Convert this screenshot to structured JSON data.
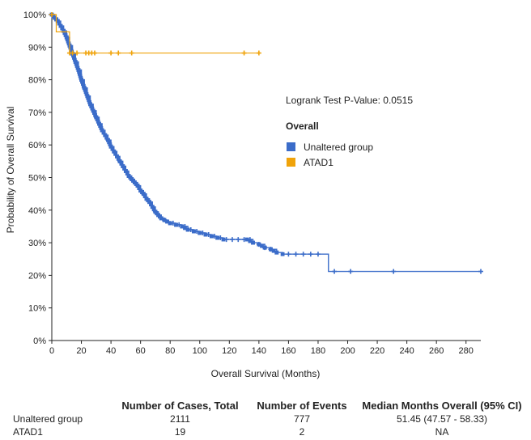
{
  "chart_data": {
    "type": "line",
    "xlabel": "Overall Survival (Months)",
    "ylabel": "Probability of Overall Survival",
    "xlim": [
      0,
      290
    ],
    "ylim": [
      0,
      100
    ],
    "x_ticks": [
      0,
      20,
      40,
      60,
      80,
      100,
      120,
      140,
      160,
      180,
      200,
      220,
      240,
      260,
      280
    ],
    "y_ticks": [
      "0%",
      "10%",
      "20%",
      "30%",
      "40%",
      "50%",
      "60%",
      "70%",
      "80%",
      "90%",
      "100%"
    ],
    "annotation": "Logrank Test P-Value: 0.0515",
    "legend_title": "Overall",
    "series": [
      {
        "name": "Unaltered group",
        "color": "#3b6cc9",
        "x": [
          0,
          2,
          4,
          6,
          8,
          10,
          12,
          14,
          16,
          18,
          20,
          22,
          24,
          26,
          28,
          30,
          32,
          34,
          36,
          38,
          40,
          42,
          44,
          46,
          48,
          50,
          52,
          54,
          56,
          58,
          60,
          62,
          64,
          66,
          68,
          70,
          72,
          74,
          76,
          78,
          80,
          84,
          88,
          92,
          96,
          100,
          104,
          108,
          112,
          116,
          120,
          124,
          128,
          132,
          136,
          140,
          144,
          148,
          152,
          156,
          160,
          170,
          180,
          185,
          187,
          200,
          230,
          290
        ],
        "y": [
          100,
          99,
          98,
          96.5,
          95,
          93,
          90.5,
          88,
          85.5,
          83,
          80,
          77.5,
          75,
          72.5,
          70.5,
          68.5,
          66.5,
          64.5,
          63,
          61.5,
          59.5,
          58,
          56.5,
          55,
          53.5,
          52,
          50.5,
          49.5,
          48.5,
          47.5,
          46,
          45,
          43.5,
          42.5,
          41,
          39.5,
          38.5,
          37.5,
          37,
          36.5,
          36,
          35.5,
          35,
          34,
          33.5,
          33,
          32.5,
          32,
          31.5,
          31,
          31,
          31,
          31,
          31,
          30,
          29.5,
          28.5,
          28,
          27,
          26.5,
          26.5,
          26.5,
          26.5,
          26.5,
          21.2,
          21.2,
          21.2,
          21.2
        ],
        "censored_x": [
          14,
          22,
          30,
          38,
          46,
          54,
          62,
          70,
          76,
          82,
          86,
          90,
          94,
          98,
          102,
          106,
          110,
          114,
          118,
          122,
          126,
          130,
          134,
          140,
          144,
          148,
          160,
          165,
          170,
          175,
          180,
          191,
          202,
          231,
          290
        ]
      },
      {
        "name": "ATAD1",
        "color": "#f0a30a",
        "x": [
          0,
          3,
          3,
          12,
          12,
          140
        ],
        "y": [
          100,
          100,
          94.7,
          94.7,
          88.2,
          88.2
        ],
        "censored_x": [
          0,
          12,
          14,
          17,
          23,
          25,
          27,
          29,
          40,
          45,
          54,
          130,
          140
        ]
      }
    ]
  },
  "summary_table": {
    "headers": [
      "",
      "Number of Cases, Total",
      "Number of Events",
      "Median Months Overall (95% CI)"
    ],
    "rows": [
      [
        "Unaltered group",
        "2111",
        "777",
        "51.45 (47.57 - 58.33)"
      ],
      [
        "ATAD1",
        "19",
        "2",
        "NA"
      ]
    ]
  }
}
